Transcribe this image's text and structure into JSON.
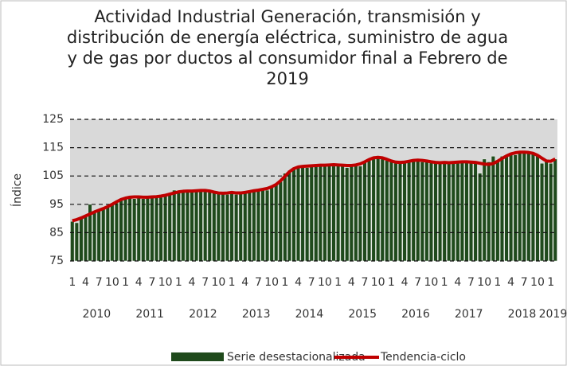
{
  "chart_data": {
    "type": "bar_line",
    "title": "Actividad Industrial Generación, transmisión y distribución de energía eléctrica, suministro de agua y de gas por ductos al consumidor final  a Febrero  de 2019",
    "y_label": "Índice",
    "categories": [
      "1",
      null,
      null,
      "4",
      null,
      null,
      "7",
      null,
      null,
      "10",
      null,
      null,
      "1",
      null,
      null,
      "4",
      null,
      null,
      "7",
      null,
      null,
      "10",
      null,
      null,
      "1",
      null,
      null,
      "4",
      null,
      null,
      "7",
      null,
      null,
      "10",
      null,
      null,
      "1",
      null,
      null,
      "4",
      null,
      null,
      "7",
      null,
      null,
      "10",
      null,
      null,
      "1",
      null,
      null,
      "4",
      null,
      null,
      "7",
      null,
      null,
      "10",
      null,
      null,
      "1",
      null,
      null,
      "4",
      null,
      null,
      "7",
      null,
      null,
      "10",
      null,
      null,
      "1",
      null,
      null,
      "4",
      null,
      null,
      "7",
      null,
      null,
      "10",
      null,
      null,
      "1",
      null,
      null,
      "4",
      null,
      null,
      "7",
      null,
      null,
      "10",
      null,
      null,
      "1",
      null,
      null,
      "4",
      null,
      null,
      "7",
      null,
      null,
      "10",
      null,
      null,
      "1",
      null
    ],
    "year_labels": [
      "2010",
      "2011",
      "2012",
      "2013",
      "2014",
      "2015",
      "2016",
      "2017",
      "2018",
      "2019"
    ],
    "ylim": [
      75,
      125
    ],
    "yticks": [
      75,
      85,
      95,
      105,
      115,
      125
    ],
    "grid": true,
    "series": [
      {
        "name": "Serie desestacionalizada",
        "type": "bar",
        "color": "#1f4a1c",
        "values": [
          89,
          88.5,
          90,
          91,
          95,
          92,
          93,
          93.5,
          94,
          95,
          95.5,
          96.5,
          97,
          97.5,
          97,
          98,
          97,
          97.5,
          97.5,
          98,
          97.5,
          98,
          98.5,
          100,
          99,
          99.5,
          100,
          99.5,
          100,
          100,
          99.5,
          100,
          99.5,
          99,
          99,
          98.5,
          99,
          98.5,
          99.5,
          99,
          100,
          99.5,
          100,
          100.5,
          100,
          101.5,
          102,
          103,
          106,
          107,
          107.5,
          108,
          108.5,
          108,
          108.5,
          109,
          108.5,
          109,
          109,
          108.5,
          109,
          108.5,
          108,
          109,
          109,
          108.5,
          110,
          110.5,
          111,
          111.5,
          111,
          110.5,
          110,
          109.5,
          110,
          109.5,
          110.5,
          110.5,
          111,
          110,
          110.5,
          110,
          109.5,
          109.5,
          110,
          109.5,
          110,
          109.5,
          110.5,
          110,
          110,
          109.5,
          106,
          111,
          110,
          112,
          110.5,
          112,
          112.5,
          113,
          112.5,
          114,
          113,
          113.5,
          113,
          112.5,
          109.5,
          110,
          109.5,
          111
        ]
      },
      {
        "name": "Tendencia-ciclo",
        "type": "line",
        "color": "#c00000",
        "values": [
          89.2,
          89.6,
          90.2,
          90.9,
          91.6,
          92.3,
          92.9,
          93.5,
          94.2,
          95.0,
          95.9,
          96.7,
          97.2,
          97.5,
          97.6,
          97.6,
          97.5,
          97.5,
          97.6,
          97.7,
          97.9,
          98.2,
          98.6,
          99.0,
          99.4,
          99.6,
          99.7,
          99.7,
          99.8,
          99.9,
          99.9,
          99.7,
          99.3,
          99.0,
          98.9,
          99.0,
          99.2,
          99.0,
          99.0,
          99.2,
          99.5,
          99.8,
          100.0,
          100.3,
          100.6,
          101.2,
          102.0,
          103.3,
          104.9,
          106.5,
          107.6,
          108.2,
          108.4,
          108.5,
          108.6,
          108.7,
          108.8,
          108.8,
          108.9,
          109.0,
          108.9,
          108.8,
          108.7,
          108.7,
          108.9,
          109.3,
          110.0,
          110.8,
          111.4,
          111.6,
          111.4,
          110.9,
          110.3,
          109.9,
          109.8,
          109.9,
          110.2,
          110.5,
          110.6,
          110.5,
          110.3,
          110.0,
          109.8,
          109.7,
          109.8,
          109.7,
          109.8,
          109.9,
          110.0,
          110.0,
          109.9,
          109.8,
          109.5,
          109.2,
          109.1,
          109.4,
          110.2,
          111.2,
          112.1,
          112.8,
          113.2,
          113.4,
          113.4,
          113.3,
          113.0,
          112.3,
          111.3,
          110.3,
          110.2,
          111.0
        ]
      }
    ]
  }
}
